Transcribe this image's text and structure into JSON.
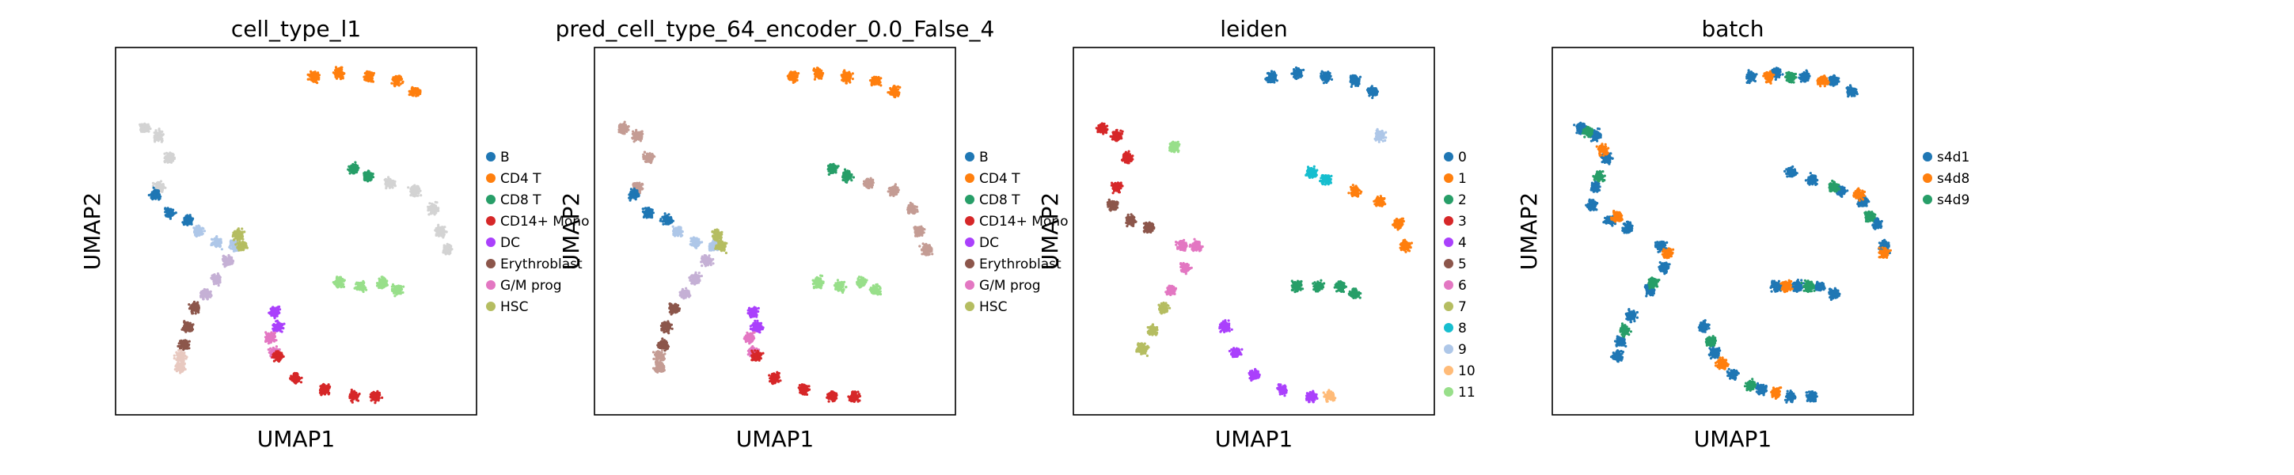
{
  "chart_data": [
    {
      "type": "scatter",
      "title": "cell_type_l1",
      "xlabel": "UMAP1",
      "ylabel": "UMAP2",
      "grid": false,
      "legend_position": "right",
      "legend": [
        {
          "label": "B",
          "color": "#1f77b4"
        },
        {
          "label": "CD4 T",
          "color": "#ff7f0e"
        },
        {
          "label": "CD8 T",
          "color": "#279e68"
        },
        {
          "label": "CD14+ Mono",
          "color": "#d62728"
        },
        {
          "label": "DC",
          "color": "#aa40fc"
        },
        {
          "label": "Erythroblast",
          "color": "#8c564b"
        },
        {
          "label": "G/M prog",
          "color": "#e377c2"
        },
        {
          "label": "HSC",
          "color": "#b5bd61"
        }
      ],
      "clusters": [
        {
          "c": "#ff7f0e",
          "p": [
            [
              0.55,
              0.92
            ],
            [
              0.62,
              0.93
            ],
            [
              0.7,
              0.92
            ],
            [
              0.78,
              0.91
            ],
            [
              0.83,
              0.88
            ]
          ]
        },
        {
          "c": "#d3d3d3",
          "p": [
            [
              0.08,
              0.78
            ],
            [
              0.12,
              0.76
            ],
            [
              0.15,
              0.7
            ],
            [
              0.12,
              0.62
            ]
          ]
        },
        {
          "c": "#1f77b4",
          "p": [
            [
              0.11,
              0.6
            ],
            [
              0.15,
              0.55
            ],
            [
              0.2,
              0.53
            ]
          ]
        },
        {
          "c": "#aec7e8",
          "p": [
            [
              0.23,
              0.5
            ],
            [
              0.28,
              0.47
            ],
            [
              0.33,
              0.46
            ]
          ]
        },
        {
          "c": "#b5bd61",
          "p": [
            [
              0.34,
              0.49
            ],
            [
              0.35,
              0.46
            ]
          ]
        },
        {
          "c": "#c5b0d5",
          "p": [
            [
              0.31,
              0.42
            ],
            [
              0.28,
              0.37
            ],
            [
              0.25,
              0.33
            ]
          ]
        },
        {
          "c": "#8c564b",
          "p": [
            [
              0.22,
              0.29
            ],
            [
              0.2,
              0.24
            ],
            [
              0.19,
              0.19
            ]
          ]
        },
        {
          "c": "#e8c9c0",
          "p": [
            [
              0.18,
              0.16
            ],
            [
              0.18,
              0.13
            ]
          ]
        },
        {
          "c": "#aa40fc",
          "p": [
            [
              0.44,
              0.28
            ],
            [
              0.45,
              0.24
            ]
          ]
        },
        {
          "c": "#e377c2",
          "p": [
            [
              0.43,
              0.21
            ],
            [
              0.44,
              0.17
            ]
          ]
        },
        {
          "c": "#d62728",
          "p": [
            [
              0.45,
              0.16
            ],
            [
              0.5,
              0.1
            ],
            [
              0.58,
              0.07
            ],
            [
              0.66,
              0.05
            ],
            [
              0.72,
              0.05
            ]
          ]
        },
        {
          "c": "#279e68",
          "p": [
            [
              0.66,
              0.67
            ],
            [
              0.7,
              0.65
            ]
          ]
        },
        {
          "c": "#d3d3d3",
          "p": [
            [
              0.76,
              0.63
            ],
            [
              0.83,
              0.61
            ],
            [
              0.88,
              0.56
            ],
            [
              0.9,
              0.5
            ],
            [
              0.92,
              0.45
            ]
          ]
        },
        {
          "c": "#98df8a",
          "p": [
            [
              0.62,
              0.36
            ],
            [
              0.68,
              0.35
            ],
            [
              0.74,
              0.36
            ],
            [
              0.78,
              0.34
            ]
          ]
        }
      ]
    },
    {
      "type": "scatter",
      "title": "pred_cell_type_64_encoder_0.0_False_4",
      "xlabel": "UMAP1",
      "ylabel": "UMAP2",
      "grid": false,
      "legend_position": "right",
      "legend": [
        {
          "label": "B",
          "color": "#1f77b4"
        },
        {
          "label": "CD4 T",
          "color": "#ff7f0e"
        },
        {
          "label": "CD8 T",
          "color": "#279e68"
        },
        {
          "label": "CD14+ Mono",
          "color": "#d62728"
        },
        {
          "label": "DC",
          "color": "#aa40fc"
        },
        {
          "label": "Erythroblast",
          "color": "#8c564b"
        },
        {
          "label": "G/M prog",
          "color": "#e377c2"
        },
        {
          "label": "HSC",
          "color": "#b5bd61"
        }
      ],
      "clusters": [
        {
          "c": "#ff7f0e",
          "p": [
            [
              0.55,
              0.92
            ],
            [
              0.62,
              0.93
            ],
            [
              0.7,
              0.92
            ],
            [
              0.78,
              0.91
            ],
            [
              0.83,
              0.88
            ]
          ]
        },
        {
          "c": "#c49c94",
          "p": [
            [
              0.08,
              0.78
            ],
            [
              0.12,
              0.76
            ],
            [
              0.15,
              0.7
            ],
            [
              0.12,
              0.62
            ]
          ]
        },
        {
          "c": "#1f77b4",
          "p": [
            [
              0.11,
              0.6
            ],
            [
              0.15,
              0.55
            ],
            [
              0.2,
              0.53
            ]
          ]
        },
        {
          "c": "#aec7e8",
          "p": [
            [
              0.23,
              0.5
            ],
            [
              0.28,
              0.47
            ],
            [
              0.33,
              0.46
            ]
          ]
        },
        {
          "c": "#b5bd61",
          "p": [
            [
              0.34,
              0.49
            ],
            [
              0.35,
              0.46
            ]
          ]
        },
        {
          "c": "#c5b0d5",
          "p": [
            [
              0.31,
              0.42
            ],
            [
              0.28,
              0.37
            ],
            [
              0.25,
              0.33
            ]
          ]
        },
        {
          "c": "#8c564b",
          "p": [
            [
              0.22,
              0.29
            ],
            [
              0.2,
              0.24
            ],
            [
              0.19,
              0.19
            ]
          ]
        },
        {
          "c": "#c49c94",
          "p": [
            [
              0.18,
              0.16
            ],
            [
              0.18,
              0.13
            ]
          ]
        },
        {
          "c": "#aa40fc",
          "p": [
            [
              0.44,
              0.28
            ],
            [
              0.45,
              0.24
            ]
          ]
        },
        {
          "c": "#e377c2",
          "p": [
            [
              0.43,
              0.21
            ],
            [
              0.44,
              0.17
            ]
          ]
        },
        {
          "c": "#d62728",
          "p": [
            [
              0.45,
              0.16
            ],
            [
              0.5,
              0.1
            ],
            [
              0.58,
              0.07
            ],
            [
              0.66,
              0.05
            ],
            [
              0.72,
              0.05
            ]
          ]
        },
        {
          "c": "#279e68",
          "p": [
            [
              0.66,
              0.67
            ],
            [
              0.7,
              0.65
            ]
          ]
        },
        {
          "c": "#c49c94",
          "p": [
            [
              0.76,
              0.63
            ],
            [
              0.83,
              0.61
            ],
            [
              0.88,
              0.56
            ],
            [
              0.9,
              0.5
            ],
            [
              0.92,
              0.45
            ]
          ]
        },
        {
          "c": "#98df8a",
          "p": [
            [
              0.62,
              0.36
            ],
            [
              0.68,
              0.35
            ],
            [
              0.74,
              0.36
            ],
            [
              0.78,
              0.34
            ]
          ]
        }
      ]
    },
    {
      "type": "scatter",
      "title": "leiden",
      "xlabel": "UMAP1",
      "ylabel": "UMAP2",
      "grid": false,
      "legend_position": "right",
      "legend": [
        {
          "label": "0",
          "color": "#1f77b4"
        },
        {
          "label": "1",
          "color": "#ff7f0e"
        },
        {
          "label": "2",
          "color": "#279e68"
        },
        {
          "label": "3",
          "color": "#d62728"
        },
        {
          "label": "4",
          "color": "#aa40fc"
        },
        {
          "label": "5",
          "color": "#8c564b"
        },
        {
          "label": "6",
          "color": "#e377c2"
        },
        {
          "label": "7",
          "color": "#b5bd61"
        },
        {
          "label": "8",
          "color": "#17becf"
        },
        {
          "label": "9",
          "color": "#aec7e8"
        },
        {
          "label": "10",
          "color": "#ffbb78"
        },
        {
          "label": "11",
          "color": "#98df8a"
        }
      ],
      "clusters": [
        {
          "c": "#1f77b4",
          "p": [
            [
              0.55,
              0.92
            ],
            [
              0.62,
              0.93
            ],
            [
              0.7,
              0.92
            ],
            [
              0.78,
              0.91
            ],
            [
              0.83,
              0.88
            ]
          ]
        },
        {
          "c": "#aec7e8",
          "p": [
            [
              0.85,
              0.76
            ]
          ]
        },
        {
          "c": "#d62728",
          "p": [
            [
              0.08,
              0.78
            ],
            [
              0.12,
              0.76
            ],
            [
              0.15,
              0.7
            ],
            [
              0.12,
              0.62
            ]
          ]
        },
        {
          "c": "#8c564b",
          "p": [
            [
              0.11,
              0.57
            ],
            [
              0.16,
              0.53
            ],
            [
              0.21,
              0.51
            ]
          ]
        },
        {
          "c": "#e377c2",
          "p": [
            [
              0.3,
              0.46
            ],
            [
              0.34,
              0.46
            ],
            [
              0.31,
              0.4
            ],
            [
              0.27,
              0.34
            ]
          ]
        },
        {
          "c": "#b5bd61",
          "p": [
            [
              0.25,
              0.29
            ],
            [
              0.22,
              0.23
            ],
            [
              0.19,
              0.18
            ]
          ]
        },
        {
          "c": "#aa40fc",
          "p": [
            [
              0.42,
              0.24
            ],
            [
              0.45,
              0.17
            ],
            [
              0.5,
              0.11
            ],
            [
              0.58,
              0.07
            ],
            [
              0.66,
              0.05
            ]
          ]
        },
        {
          "c": "#ffbb78",
          "p": [
            [
              0.71,
              0.05
            ]
          ]
        },
        {
          "c": "#17becf",
          "p": [
            [
              0.66,
              0.66
            ],
            [
              0.7,
              0.64
            ]
          ]
        },
        {
          "c": "#ff7f0e",
          "p": [
            [
              0.78,
              0.61
            ],
            [
              0.85,
              0.58
            ],
            [
              0.9,
              0.52
            ],
            [
              0.92,
              0.46
            ]
          ]
        },
        {
          "c": "#279e68",
          "p": [
            [
              0.62,
              0.35
            ],
            [
              0.68,
              0.35
            ],
            [
              0.74,
              0.35
            ],
            [
              0.78,
              0.33
            ]
          ]
        },
        {
          "c": "#98df8a",
          "p": [
            [
              0.28,
              0.73
            ]
          ]
        }
      ]
    },
    {
      "type": "scatter",
      "title": "batch",
      "xlabel": "UMAP1",
      "ylabel": "UMAP2",
      "grid": false,
      "legend_position": "right",
      "legend": [
        {
          "label": "s4d1",
          "color": "#1f77b4"
        },
        {
          "label": "s4d8",
          "color": "#ff7f0e"
        },
        {
          "label": "s4d9",
          "color": "#279e68"
        }
      ],
      "clusters": [
        {
          "c": "#1f77b4",
          "p": [
            [
              0.55,
              0.92
            ],
            [
              0.62,
              0.93
            ],
            [
              0.7,
              0.92
            ],
            [
              0.78,
              0.91
            ],
            [
              0.83,
              0.88
            ],
            [
              0.08,
              0.78
            ],
            [
              0.12,
              0.76
            ],
            [
              0.15,
              0.7
            ],
            [
              0.12,
              0.62
            ],
            [
              0.11,
              0.57
            ],
            [
              0.16,
              0.53
            ],
            [
              0.21,
              0.51
            ],
            [
              0.3,
              0.46
            ],
            [
              0.31,
              0.4
            ],
            [
              0.27,
              0.34
            ],
            [
              0.22,
              0.27
            ],
            [
              0.19,
              0.2
            ],
            [
              0.18,
              0.16
            ],
            [
              0.42,
              0.24
            ],
            [
              0.45,
              0.17
            ],
            [
              0.5,
              0.11
            ],
            [
              0.58,
              0.07
            ],
            [
              0.66,
              0.05
            ],
            [
              0.72,
              0.05
            ],
            [
              0.66,
              0.66
            ],
            [
              0.72,
              0.64
            ],
            [
              0.8,
              0.61
            ],
            [
              0.86,
              0.58
            ],
            [
              0.9,
              0.52
            ],
            [
              0.92,
              0.46
            ],
            [
              0.62,
              0.35
            ],
            [
              0.68,
              0.35
            ],
            [
              0.74,
              0.35
            ],
            [
              0.78,
              0.33
            ]
          ]
        },
        {
          "c": "#ff7f0e",
          "p": [
            [
              0.6,
              0.92
            ],
            [
              0.75,
              0.91
            ],
            [
              0.14,
              0.72
            ],
            [
              0.18,
              0.54
            ],
            [
              0.32,
              0.44
            ],
            [
              0.47,
              0.14
            ],
            [
              0.62,
              0.06
            ],
            [
              0.85,
              0.6
            ],
            [
              0.92,
              0.44
            ],
            [
              0.65,
              0.35
            ]
          ]
        },
        {
          "c": "#279e68",
          "p": [
            [
              0.66,
              0.92
            ],
            [
              0.1,
              0.77
            ],
            [
              0.13,
              0.65
            ],
            [
              0.28,
              0.36
            ],
            [
              0.2,
              0.23
            ],
            [
              0.44,
              0.2
            ],
            [
              0.55,
              0.08
            ],
            [
              0.78,
              0.62
            ],
            [
              0.88,
              0.54
            ],
            [
              0.71,
              0.35
            ]
          ]
        }
      ]
    }
  ]
}
